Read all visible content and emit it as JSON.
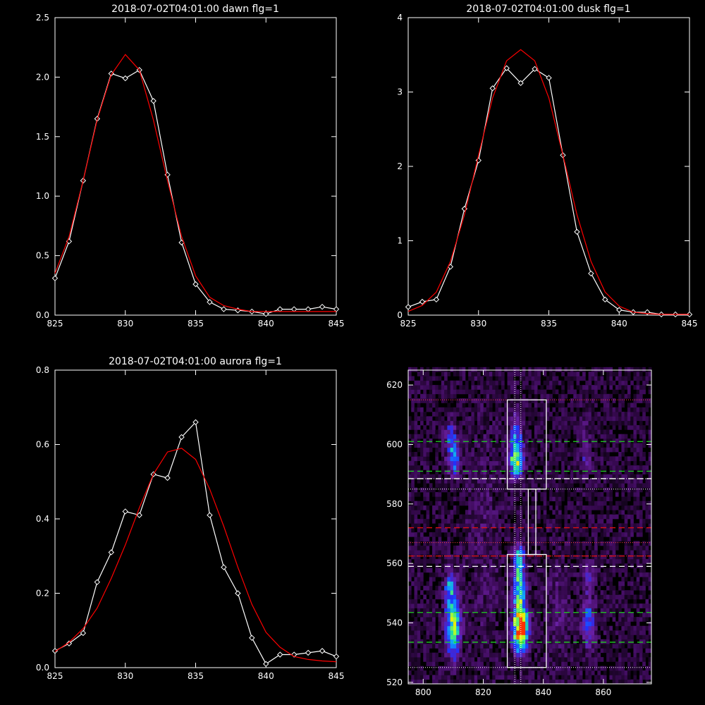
{
  "chart_data": [
    {
      "type": "line",
      "title": "2018-07-02T04:01:00 dawn flg=1",
      "xlim": [
        825,
        845
      ],
      "ylim": [
        0,
        2.5
      ],
      "xticks": [
        825,
        830,
        835,
        840,
        845
      ],
      "yticks": [
        0.0,
        0.5,
        1.0,
        1.5,
        2.0,
        2.5
      ],
      "ytick_labels": [
        "0.0",
        "0.5",
        "1.0",
        "1.5",
        "2.0",
        "2.5"
      ],
      "grid": false,
      "series": [
        {
          "color": "#ffffff",
          "markers": "diamond",
          "x": [
            825,
            826,
            827,
            828,
            829,
            830,
            831,
            832,
            833,
            834,
            835,
            836,
            837,
            838,
            839,
            840,
            841,
            842,
            843,
            844,
            845
          ],
          "y": [
            0.31,
            0.62,
            1.13,
            1.65,
            2.03,
            1.99,
            2.06,
            1.8,
            1.18,
            0.61,
            0.26,
            0.11,
            0.05,
            0.04,
            0.03,
            0.01,
            0.05,
            0.05,
            0.05,
            0.07,
            0.05
          ]
        },
        {
          "color": "#ff0000",
          "markers": "none",
          "x": [
            825,
            826,
            827,
            828,
            829,
            830,
            831,
            832,
            833,
            834,
            835,
            836,
            837,
            838,
            839,
            840,
            841,
            842,
            843,
            844,
            845
          ],
          "y": [
            0.35,
            0.66,
            1.13,
            1.64,
            2.02,
            2.19,
            2.06,
            1.64,
            1.13,
            0.66,
            0.33,
            0.15,
            0.08,
            0.05,
            0.03,
            0.03,
            0.03,
            0.03,
            0.03,
            0.03,
            0.03
          ]
        }
      ]
    },
    {
      "type": "line",
      "title": "2018-07-02T04:01:00 dusk flg=1",
      "xlim": [
        825,
        845
      ],
      "ylim": [
        0,
        4
      ],
      "xticks": [
        825,
        830,
        835,
        840,
        845
      ],
      "yticks": [
        0,
        1,
        2,
        3,
        4
      ],
      "ytick_labels": [
        "0",
        "1",
        "2",
        "3",
        "4"
      ],
      "grid": false,
      "series": [
        {
          "color": "#ffffff",
          "markers": "diamond",
          "x": [
            825,
            826,
            827,
            828,
            829,
            830,
            831,
            832,
            833,
            834,
            835,
            836,
            837,
            838,
            839,
            840,
            841,
            842,
            843,
            844,
            845
          ],
          "y": [
            0.11,
            0.18,
            0.21,
            0.65,
            1.43,
            2.08,
            3.05,
            3.32,
            3.12,
            3.31,
            3.19,
            2.15,
            1.12,
            0.56,
            0.21,
            0.07,
            0.04,
            0.04,
            0.01,
            0.01,
            0.01
          ]
        },
        {
          "color": "#ff0000",
          "markers": "none",
          "x": [
            825,
            826,
            827,
            828,
            829,
            830,
            831,
            832,
            833,
            834,
            835,
            836,
            837,
            838,
            839,
            840,
            841,
            842,
            843,
            844,
            845
          ],
          "y": [
            0.05,
            0.13,
            0.31,
            0.72,
            1.35,
            2.15,
            2.92,
            3.42,
            3.57,
            3.42,
            2.92,
            2.15,
            1.35,
            0.72,
            0.31,
            0.12,
            0.04,
            0.02,
            0.01,
            0.01,
            0.01
          ]
        }
      ]
    },
    {
      "type": "line",
      "title": "2018-07-02T04:01:00 aurora flg=1",
      "xlim": [
        825,
        845
      ],
      "ylim": [
        0,
        0.8
      ],
      "xticks": [
        825,
        830,
        835,
        840,
        845
      ],
      "yticks": [
        0.0,
        0.2,
        0.4,
        0.6,
        0.8
      ],
      "ytick_labels": [
        "0.0",
        "0.2",
        "0.4",
        "0.6",
        "0.8"
      ],
      "grid": false,
      "series": [
        {
          "color": "#ffffff",
          "markers": "diamond",
          "x": [
            825,
            826,
            827,
            828,
            829,
            830,
            831,
            832,
            833,
            834,
            835,
            836,
            837,
            838,
            839,
            840,
            841,
            842,
            843,
            844,
            845
          ],
          "y": [
            0.045,
            0.065,
            0.093,
            0.23,
            0.31,
            0.42,
            0.41,
            0.52,
            0.51,
            0.62,
            0.66,
            0.41,
            0.27,
            0.2,
            0.08,
            0.01,
            0.035,
            0.035,
            0.04,
            0.045,
            0.03
          ]
        },
        {
          "color": "#ff0000",
          "markers": "none",
          "x": [
            825,
            826,
            827,
            828,
            829,
            830,
            831,
            832,
            833,
            834,
            835,
            836,
            837,
            838,
            839,
            840,
            841,
            842,
            843,
            844,
            845
          ],
          "y": [
            0.043,
            0.068,
            0.105,
            0.16,
            0.24,
            0.33,
            0.43,
            0.52,
            0.58,
            0.59,
            0.56,
            0.48,
            0.38,
            0.27,
            0.17,
            0.095,
            0.055,
            0.03,
            0.022,
            0.018,
            0.016
          ]
        }
      ]
    },
    {
      "type": "heatmap",
      "title": "",
      "xlim": [
        795,
        876
      ],
      "ylim": [
        519.5,
        625
      ],
      "xticks": [
        800,
        820,
        840,
        860
      ],
      "yticks": [
        520,
        540,
        560,
        580,
        600,
        620
      ],
      "colormap": [
        "#000000",
        "#3a0a55",
        "#6a1fa0",
        "#2030ff",
        "#10a0ff",
        "#20e0a0",
        "#c0ff20",
        "#ffe000",
        "#ff3000"
      ],
      "blobs": [
        {
          "x": 810,
          "y": 539,
          "sx": 1.6,
          "sy": 7,
          "amp": 0.62
        },
        {
          "x": 809,
          "y": 552,
          "sx": 1.3,
          "sy": 4,
          "amp": 0.35
        },
        {
          "x": 810,
          "y": 596,
          "sx": 1.3,
          "sy": 4,
          "amp": 0.45
        },
        {
          "x": 809,
          "y": 604,
          "sx": 1.2,
          "sy": 3,
          "amp": 0.25
        },
        {
          "x": 832.5,
          "y": 538,
          "sx": 1.7,
          "sy": 5,
          "amp": 1.0
        },
        {
          "x": 832,
          "y": 552,
          "sx": 1.4,
          "sy": 6,
          "amp": 0.58
        },
        {
          "x": 832,
          "y": 562,
          "sx": 1.2,
          "sy": 3,
          "amp": 0.35
        },
        {
          "x": 831,
          "y": 595,
          "sx": 1.5,
          "sy": 4,
          "amp": 0.72
        },
        {
          "x": 831,
          "y": 605,
          "sx": 1.3,
          "sy": 4,
          "amp": 0.3
        },
        {
          "x": 855,
          "y": 540,
          "sx": 1.4,
          "sy": 6,
          "amp": 0.32
        },
        {
          "x": 855,
          "y": 556,
          "sx": 1.3,
          "sy": 3,
          "amp": 0.22
        },
        {
          "x": 854,
          "y": 598,
          "sx": 1.3,
          "sy": 6,
          "amp": 0.17
        },
        {
          "x": 845,
          "y": 545,
          "sx": 2.5,
          "sy": 12,
          "amp": 0.1
        },
        {
          "x": 820,
          "y": 570,
          "sx": 4,
          "sy": 30,
          "amp": 0.06
        }
      ],
      "overlays": {
        "vertical_dotted_x": [
          830.5,
          832.5
        ],
        "horizontal_dotted": [
          {
            "y": 615,
            "color": "#ff4040"
          },
          {
            "y": 588.5,
            "color": "#ffffff"
          },
          {
            "y": 585,
            "color": "#ffffff"
          },
          {
            "y": 567,
            "color": "#ff4040"
          },
          {
            "y": 562.5,
            "color": "#ff4040"
          },
          {
            "y": 525,
            "color": "#ffffff"
          }
        ],
        "horizontal_dashed": [
          {
            "y": 601,
            "color": "#20d020"
          },
          {
            "y": 591,
            "color": "#20d020"
          },
          {
            "y": 588.5,
            "color": "#ffffff"
          },
          {
            "y": 572,
            "color": "#e01010"
          },
          {
            "y": 562.5,
            "color": "#e01010"
          },
          {
            "y": 559,
            "color": "#ffffff"
          },
          {
            "y": 543.5,
            "color": "#20d020"
          },
          {
            "y": 533.5,
            "color": "#20d020"
          }
        ],
        "boxes": [
          {
            "x0": 828,
            "x1": 841,
            "y0": 585,
            "y1": 615
          },
          {
            "x0": 835,
            "x1": 837.5,
            "y0": 563,
            "y1": 585
          },
          {
            "x0": 828,
            "x1": 841,
            "y0": 525,
            "y1": 563
          }
        ]
      }
    }
  ]
}
